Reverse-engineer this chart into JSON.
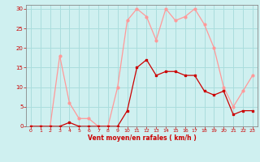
{
  "x": [
    0,
    1,
    2,
    3,
    4,
    5,
    6,
    7,
    8,
    9,
    10,
    11,
    12,
    13,
    14,
    15,
    16,
    17,
    18,
    19,
    20,
    21,
    22,
    23
  ],
  "y_mean": [
    0,
    0,
    0,
    0,
    1,
    0,
    0,
    0,
    0,
    0,
    4,
    15,
    17,
    13,
    14,
    14,
    13,
    13,
    9,
    8,
    9,
    3,
    4,
    4
  ],
  "y_gust": [
    0,
    0,
    0,
    18,
    6,
    2,
    2,
    0,
    0,
    10,
    27,
    30,
    28,
    22,
    30,
    27,
    28,
    30,
    26,
    20,
    10,
    5,
    9,
    13
  ],
  "bg_color": "#cff0f0",
  "grid_color": "#aadddd",
  "mean_color": "#cc0000",
  "gust_color": "#ff9999",
  "xlabel": "Vent moyen/en rafales ( km/h )",
  "xlabel_color": "#cc0000",
  "tick_color": "#cc0000",
  "spine_color": "#888888",
  "ylim": [
    0,
    31
  ],
  "xlim": [
    -0.5,
    23.5
  ],
  "yticks": [
    0,
    5,
    10,
    15,
    20,
    25,
    30
  ],
  "xticks": [
    0,
    1,
    2,
    3,
    4,
    5,
    6,
    7,
    8,
    9,
    10,
    11,
    12,
    13,
    14,
    15,
    16,
    17,
    18,
    19,
    20,
    21,
    22,
    23
  ]
}
